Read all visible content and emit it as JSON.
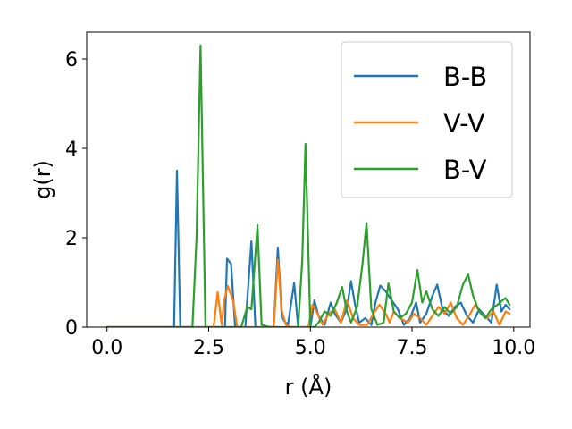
{
  "chart_data": {
    "type": "line",
    "title": "",
    "xlabel": "r (Å)",
    "ylabel": "g(r)",
    "xlim": [
      -0.5,
      10.4
    ],
    "ylim": [
      0,
      6.6
    ],
    "xticks": [
      0.0,
      2.5,
      5.0,
      7.5,
      10.0
    ],
    "xtick_labels": [
      "0.0",
      "2.5",
      "5.0",
      "7.5",
      "10.0"
    ],
    "yticks": [
      0,
      2,
      4,
      6
    ],
    "ytick_labels": [
      "0",
      "2",
      "4",
      "6"
    ],
    "grid": false,
    "legend_position": "top-right",
    "series": [
      {
        "name": "B-B",
        "color": "#1f77b4",
        "points": [
          [
            0.0,
            0
          ],
          [
            1.6,
            0
          ],
          [
            1.65,
            0
          ],
          [
            1.72,
            3.5
          ],
          [
            1.8,
            0
          ],
          [
            2.6,
            0
          ],
          [
            2.9,
            0
          ],
          [
            2.95,
            1.53
          ],
          [
            3.05,
            1.42
          ],
          [
            3.15,
            0
          ],
          [
            3.4,
            0
          ],
          [
            3.55,
            1.92
          ],
          [
            3.65,
            0
          ],
          [
            4.1,
            0
          ],
          [
            4.2,
            1.78
          ],
          [
            4.3,
            0.2
          ],
          [
            4.45,
            0.05
          ],
          [
            4.6,
            0.99
          ],
          [
            4.7,
            0
          ],
          [
            5.0,
            0
          ],
          [
            5.1,
            0.6
          ],
          [
            5.2,
            0.25
          ],
          [
            5.35,
            0.05
          ],
          [
            5.5,
            0.55
          ],
          [
            5.6,
            0.3
          ],
          [
            5.75,
            0.1
          ],
          [
            5.9,
            0.42
          ],
          [
            6.0,
            1.03
          ],
          [
            6.1,
            0.5
          ],
          [
            6.2,
            0.1
          ],
          [
            6.35,
            0.2
          ],
          [
            6.5,
            0.05
          ],
          [
            6.6,
            0.55
          ],
          [
            6.72,
            0.93
          ],
          [
            6.85,
            0.8
          ],
          [
            7.0,
            0.6
          ],
          [
            7.15,
            0.4
          ],
          [
            7.3,
            0.05
          ],
          [
            7.45,
            0.2
          ],
          [
            7.6,
            0.55
          ],
          [
            7.7,
            0.1
          ],
          [
            7.85,
            0.3
          ],
          [
            8.0,
            0.7
          ],
          [
            8.12,
            0.95
          ],
          [
            8.25,
            0.4
          ],
          [
            8.4,
            0.25
          ],
          [
            8.55,
            0.45
          ],
          [
            8.7,
            0.55
          ],
          [
            8.85,
            0.25
          ],
          [
            9.0,
            0.1
          ],
          [
            9.15,
            0.4
          ],
          [
            9.3,
            0.25
          ],
          [
            9.45,
            0.1
          ],
          [
            9.58,
            0.95
          ],
          [
            9.7,
            0.35
          ],
          [
            9.8,
            0.5
          ],
          [
            9.9,
            0.4
          ]
        ]
      },
      {
        "name": "V-V",
        "color": "#ff7f0e",
        "points": [
          [
            0.0,
            0
          ],
          [
            2.5,
            0
          ],
          [
            2.62,
            0
          ],
          [
            2.72,
            0.78
          ],
          [
            2.82,
            0.05
          ],
          [
            2.88,
            0.6
          ],
          [
            2.97,
            0.92
          ],
          [
            3.1,
            0.6
          ],
          [
            3.2,
            0
          ],
          [
            4.1,
            0
          ],
          [
            4.2,
            1.5
          ],
          [
            4.3,
            0.35
          ],
          [
            4.4,
            0.05
          ],
          [
            4.5,
            0
          ],
          [
            4.95,
            0
          ],
          [
            5.05,
            0.5
          ],
          [
            5.15,
            0.35
          ],
          [
            5.3,
            0.05
          ],
          [
            5.45,
            0.3
          ],
          [
            5.6,
            0.4
          ],
          [
            5.75,
            0.1
          ],
          [
            5.9,
            0.6
          ],
          [
            6.05,
            0.2
          ],
          [
            6.2,
            0.05
          ],
          [
            6.4,
            0.05
          ],
          [
            6.55,
            0.3
          ],
          [
            6.7,
            0.5
          ],
          [
            6.85,
            0.3
          ],
          [
            6.95,
            0.1
          ],
          [
            7.05,
            0.35
          ],
          [
            7.2,
            0.2
          ],
          [
            7.4,
            0.1
          ],
          [
            7.55,
            0.3
          ],
          [
            7.7,
            0.2
          ],
          [
            7.85,
            0.05
          ],
          [
            8.0,
            0.25
          ],
          [
            8.15,
            0.45
          ],
          [
            8.3,
            0.3
          ],
          [
            8.45,
            0.55
          ],
          [
            8.6,
            0.2
          ],
          [
            8.75,
            0.05
          ],
          [
            8.9,
            0.25
          ],
          [
            9.05,
            0.5
          ],
          [
            9.2,
            0.3
          ],
          [
            9.35,
            0.2
          ],
          [
            9.5,
            0.35
          ],
          [
            9.65,
            0.05
          ],
          [
            9.8,
            0.35
          ],
          [
            9.9,
            0.3
          ]
        ]
      },
      {
        "name": "B-V",
        "color": "#2ca02c",
        "points": [
          [
            0.0,
            0
          ],
          [
            2.1,
            0
          ],
          [
            2.2,
            2.0
          ],
          [
            2.3,
            6.3
          ],
          [
            2.42,
            0
          ],
          [
            3.3,
            0
          ],
          [
            3.45,
            0.45
          ],
          [
            3.55,
            0.4
          ],
          [
            3.7,
            2.28
          ],
          [
            3.8,
            0.05
          ],
          [
            4.0,
            0
          ],
          [
            4.7,
            0
          ],
          [
            4.8,
            1.5
          ],
          [
            4.88,
            4.1
          ],
          [
            5.0,
            0
          ],
          [
            5.1,
            0
          ],
          [
            5.2,
            0.1
          ],
          [
            5.35,
            0.35
          ],
          [
            5.5,
            0.25
          ],
          [
            5.65,
            0.55
          ],
          [
            5.78,
            0.9
          ],
          [
            5.9,
            0.35
          ],
          [
            6.0,
            0.1
          ],
          [
            6.15,
            0.45
          ],
          [
            6.28,
            1.4
          ],
          [
            6.38,
            2.33
          ],
          [
            6.5,
            0.4
          ],
          [
            6.65,
            0.05
          ],
          [
            6.8,
            0.1
          ],
          [
            6.92,
            0.98
          ],
          [
            7.05,
            0.35
          ],
          [
            7.2,
            0.2
          ],
          [
            7.35,
            0.3
          ],
          [
            7.5,
            0.55
          ],
          [
            7.63,
            1.28
          ],
          [
            7.75,
            0.55
          ],
          [
            7.85,
            0.8
          ],
          [
            8.0,
            0.4
          ],
          [
            8.15,
            0.25
          ],
          [
            8.3,
            0.45
          ],
          [
            8.45,
            0.3
          ],
          [
            8.6,
            0.45
          ],
          [
            8.75,
            0.95
          ],
          [
            8.88,
            1.18
          ],
          [
            9.0,
            0.7
          ],
          [
            9.15,
            0.35
          ],
          [
            9.3,
            0.2
          ],
          [
            9.45,
            0.4
          ],
          [
            9.6,
            0.5
          ],
          [
            9.72,
            0.6
          ],
          [
            9.8,
            0.65
          ],
          [
            9.9,
            0.5
          ]
        ]
      }
    ]
  }
}
